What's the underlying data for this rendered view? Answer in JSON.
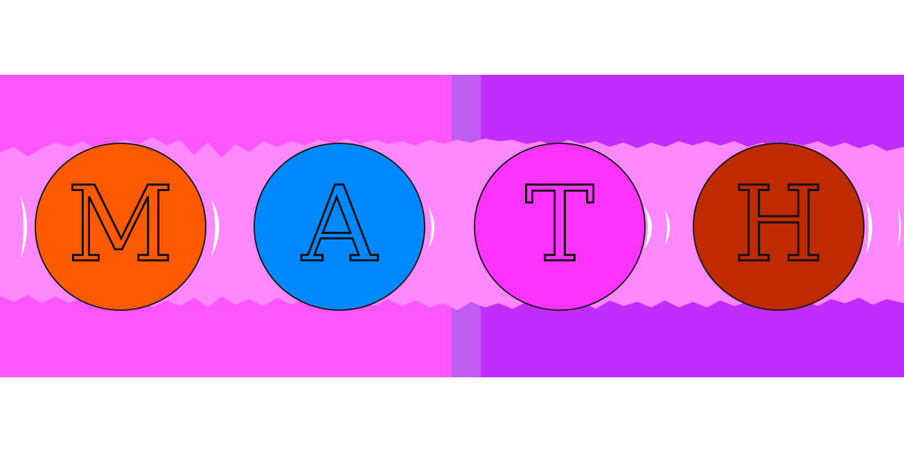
{
  "banner": {
    "colors": {
      "left_panel": "#ff55ff",
      "middle_strip": "#c05cf2",
      "right_panel": "#c22cff",
      "band": "#ff88ff",
      "glow": "#ffffff"
    },
    "tiles": [
      {
        "letter": "M",
        "color": "#ff5a00"
      },
      {
        "letter": "A",
        "color": "#0088ff"
      },
      {
        "letter": "T",
        "color": "#ff33ff"
      },
      {
        "letter": "H",
        "color": "#c02a00"
      }
    ]
  }
}
